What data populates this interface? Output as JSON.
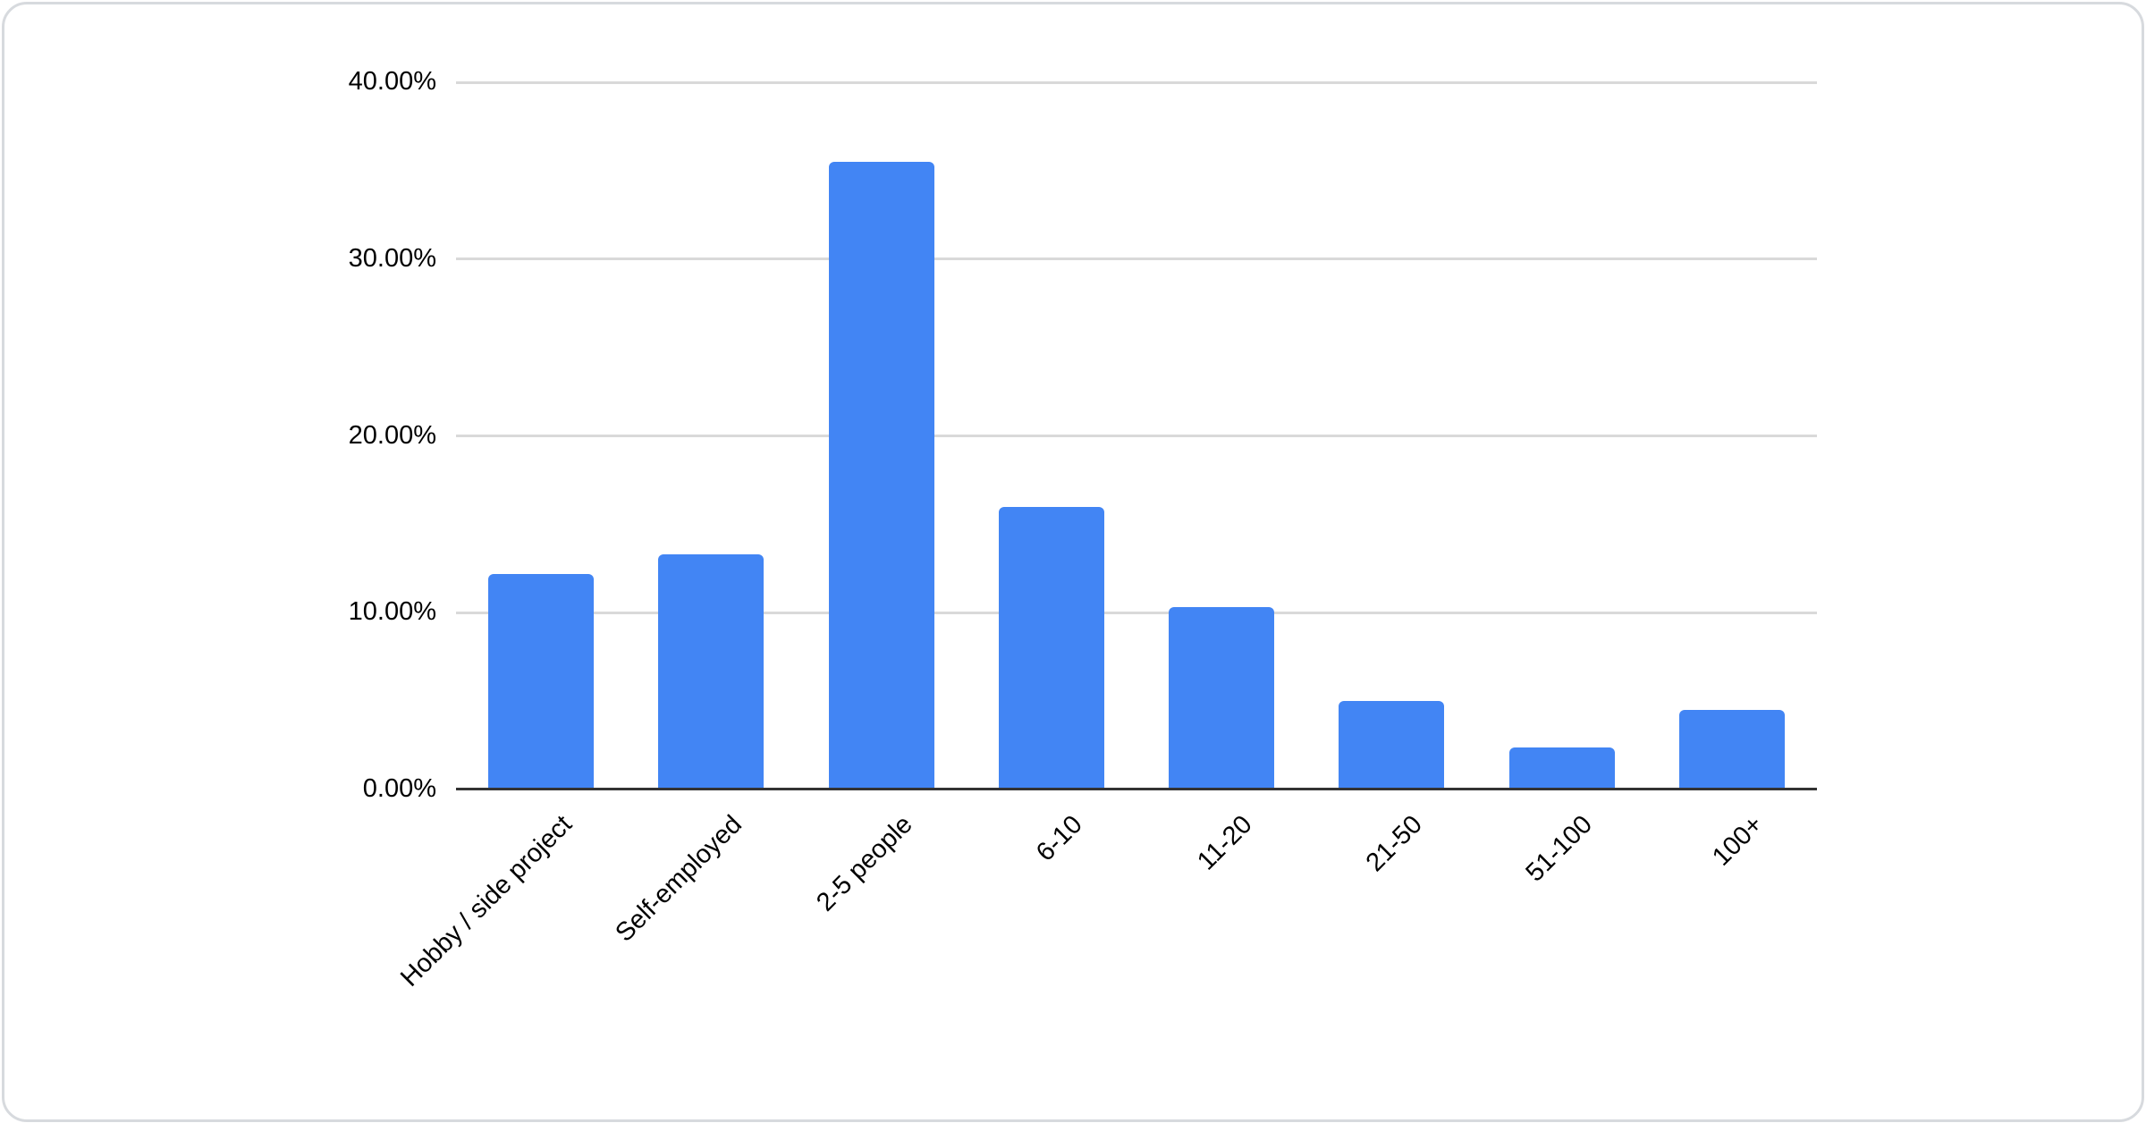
{
  "chart_data": {
    "type": "bar",
    "title": "",
    "xlabel": "",
    "ylabel": "",
    "categories": [
      "Hobby / side project",
      "Self-employed",
      "2-5 people",
      "6-10",
      "11-20",
      "21-50",
      "51-100",
      "100+"
    ],
    "values": [
      12.2,
      13.3,
      35.5,
      16.0,
      10.3,
      5.0,
      2.4,
      4.5
    ],
    "ylim": [
      0,
      40
    ],
    "y_ticks": [
      {
        "value": 0,
        "label": "0.00%"
      },
      {
        "value": 10,
        "label": "10.00%"
      },
      {
        "value": 20,
        "label": "20.00%"
      },
      {
        "value": 30,
        "label": "30.00%"
      },
      {
        "value": 40,
        "label": "40.00%"
      }
    ],
    "grid": true,
    "legend": false,
    "bar_color": "#4285f4",
    "gridline_color": "#d9d9d9",
    "axis_line_color": "#333333",
    "tick_label_color": "#000000"
  },
  "card": {
    "background": "#ffffff",
    "border_color": "#d7dade"
  }
}
